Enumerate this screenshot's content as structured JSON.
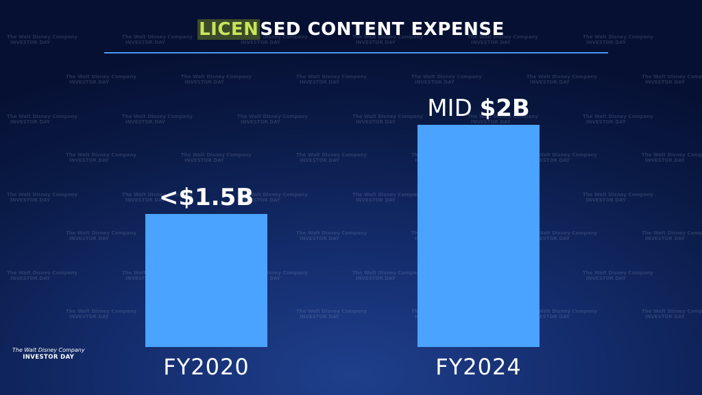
{
  "title": {
    "highlight": "LICEN",
    "rest": "SED CONTENT EXPENSE"
  },
  "watermark": {
    "line1": "The Walt Disney Company",
    "line2": "INVESTOR DAY"
  },
  "logo": {
    "line1": "The Walt Disney Company",
    "line2": "INVESTOR DAY"
  },
  "colors": {
    "bar": "#4aa3ff",
    "rule": "#4a9cf0",
    "highlight": "#c7e45a"
  },
  "chart_data": {
    "type": "bar",
    "categories": [
      "FY2020",
      "FY2024"
    ],
    "values": [
      1.5,
      2.5
    ],
    "value_labels": [
      {
        "prefix": "",
        "bold": "<$1.5B"
      },
      {
        "prefix": "MID ",
        "bold": "$2B"
      }
    ],
    "title": "LICENSED CONTENT EXPENSE",
    "xlabel": "",
    "ylabel": "",
    "ylim": [
      0,
      3
    ],
    "grid": false,
    "legend": "none"
  }
}
